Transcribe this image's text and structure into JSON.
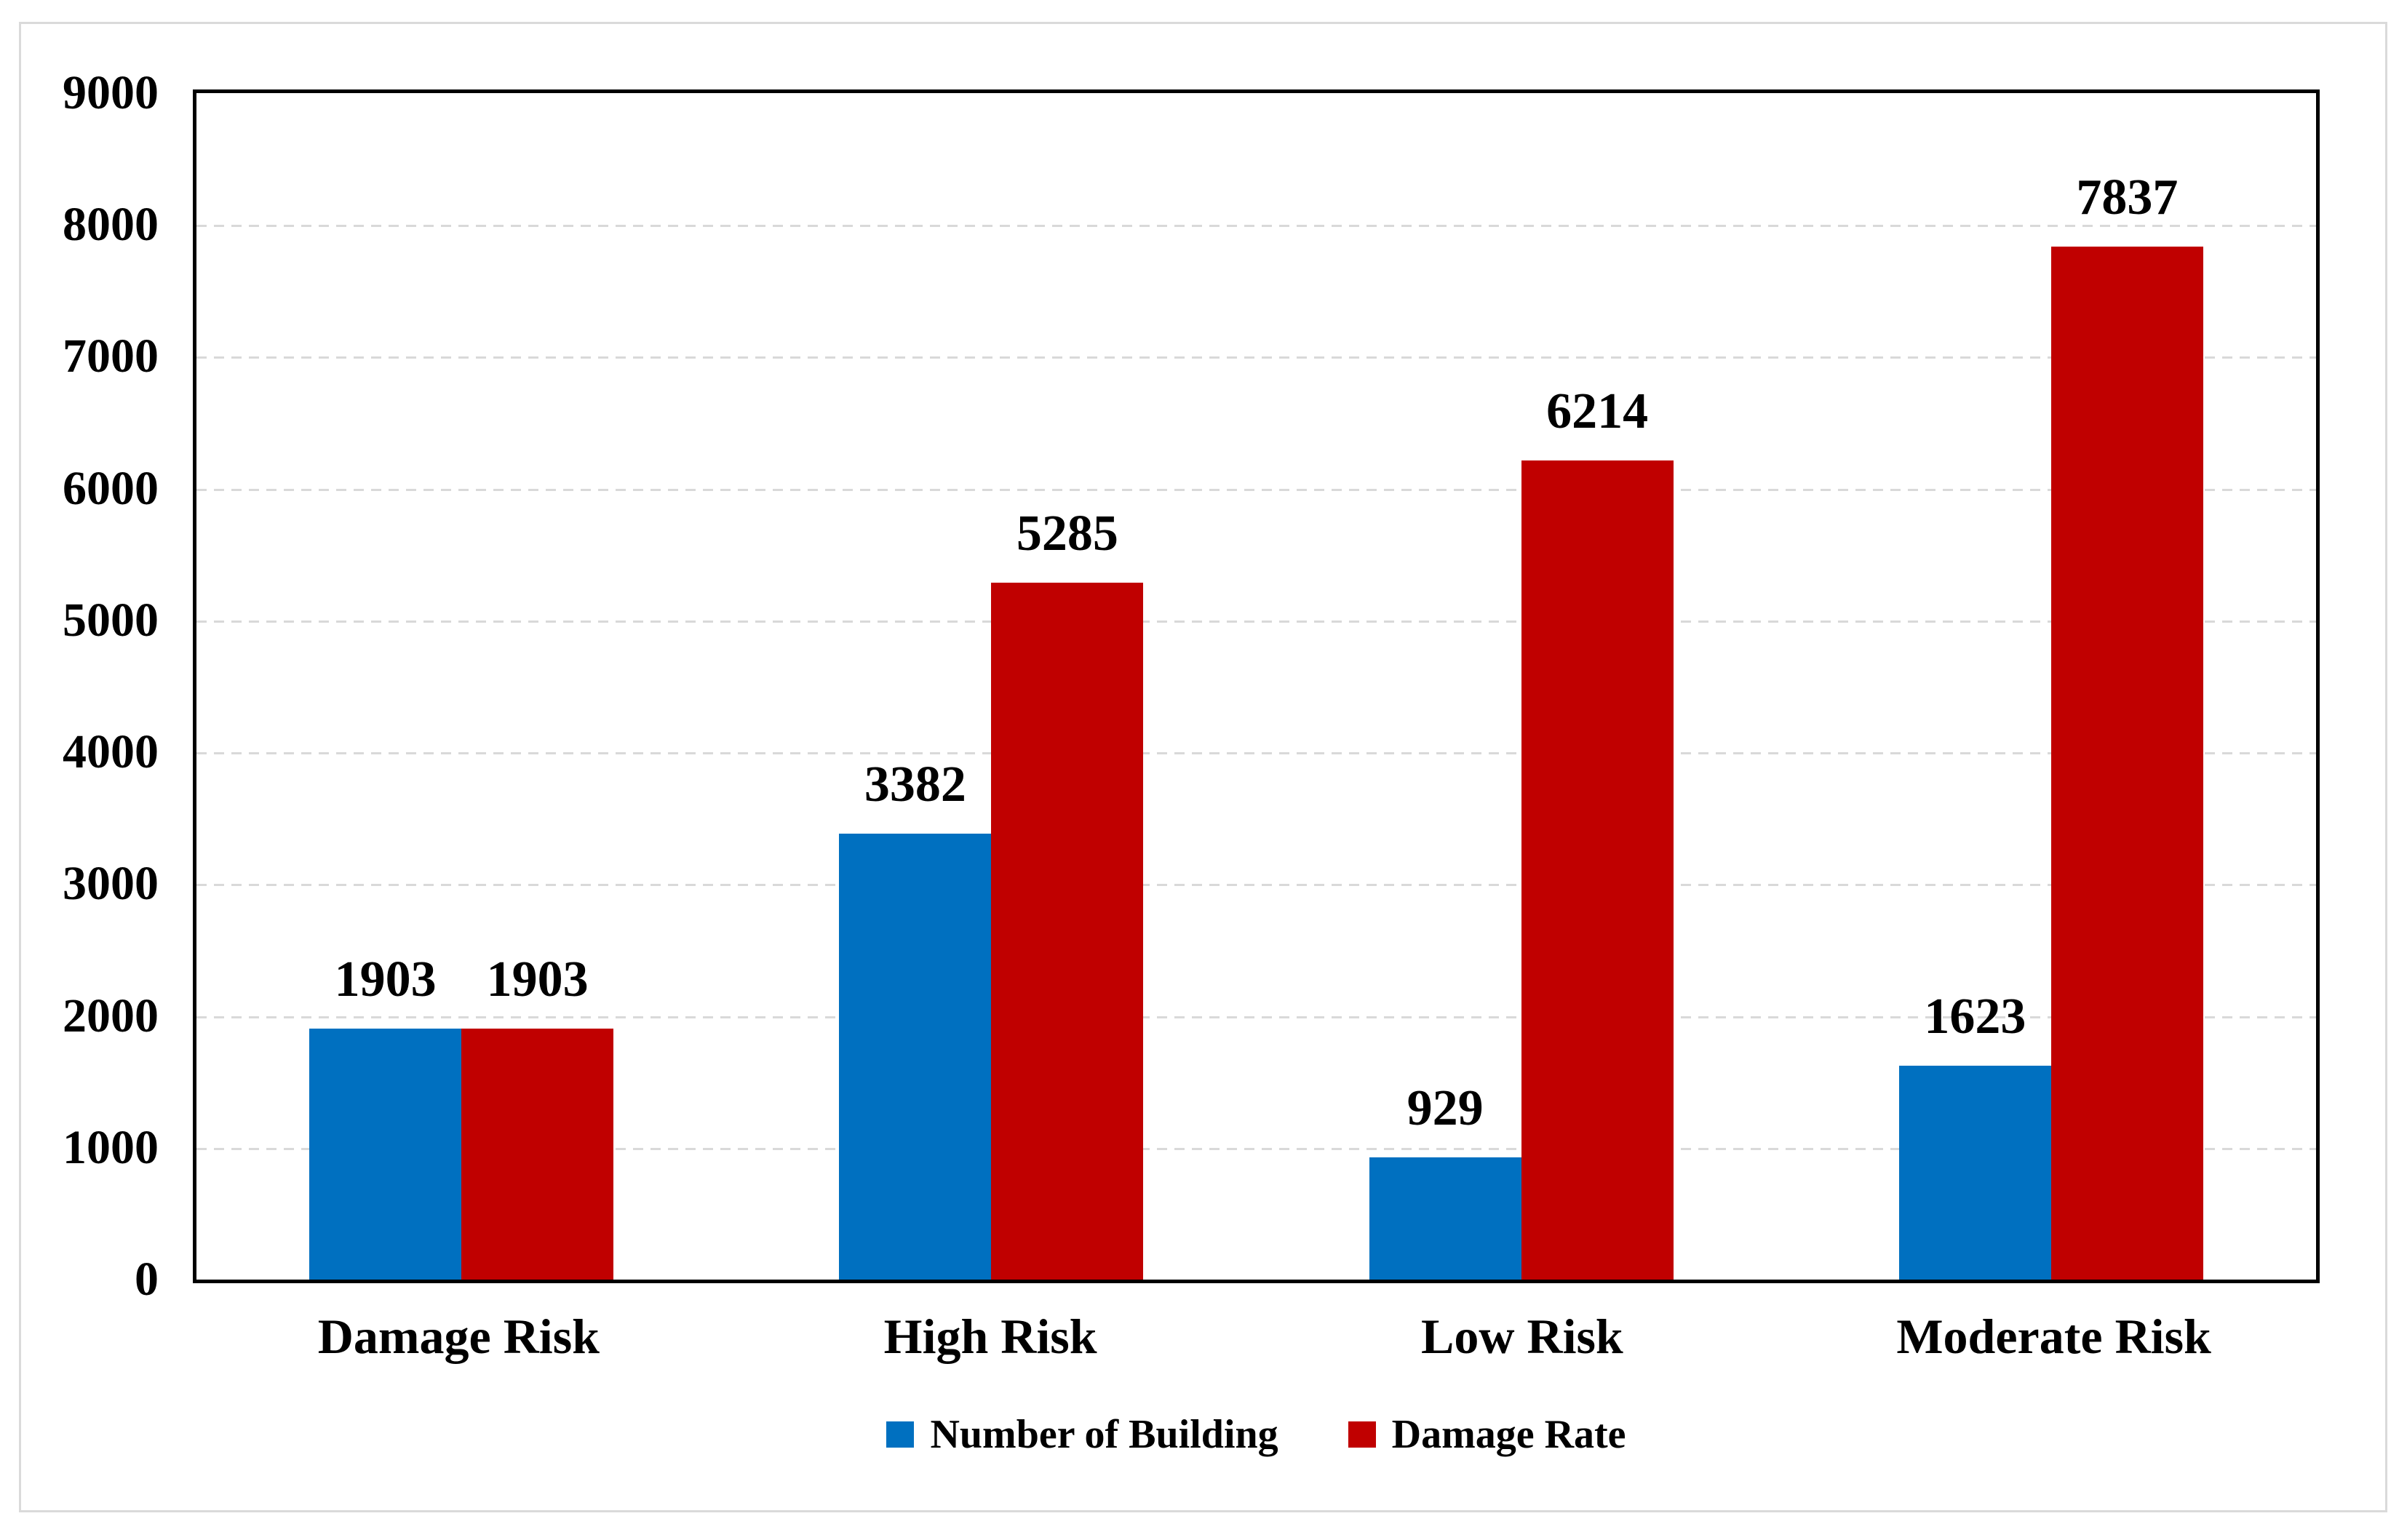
{
  "chart_data": {
    "type": "bar",
    "title": "",
    "categories": [
      "Damage Risk",
      "High Risk",
      "Low Risk",
      "Moderate Risk"
    ],
    "series": [
      {
        "name": "Number of Building",
        "color": "#0070C0",
        "values": [
          1903,
          3382,
          929,
          1623
        ]
      },
      {
        "name": "Damage Rate",
        "color": "#C00000",
        "values": [
          1903,
          5285,
          6214,
          7837
        ]
      }
    ],
    "data_labels": [
      [
        "1903",
        "3382",
        "929",
        "1623"
      ],
      [
        "1903",
        "5285",
        "6214",
        "7837"
      ]
    ],
    "ylim": [
      0,
      9000
    ],
    "yticks": [
      0,
      1000,
      2000,
      3000,
      4000,
      5000,
      6000,
      7000,
      8000,
      9000
    ],
    "ytick_labels": [
      "0",
      "1000",
      "2000",
      "3000",
      "4000",
      "5000",
      "6000",
      "7000",
      "8000",
      "9000"
    ],
    "xlabel": "",
    "ylabel": "",
    "grid": "horizontal-dashed",
    "legend_position": "bottom"
  },
  "colors": {
    "series_blue": "#0070C0",
    "series_red": "#C00000",
    "gridline": "#D9D9D9",
    "plot_border": "#000000",
    "frame_border": "#DADADA",
    "text": "#000000",
    "background": "#FFFFFF"
  }
}
